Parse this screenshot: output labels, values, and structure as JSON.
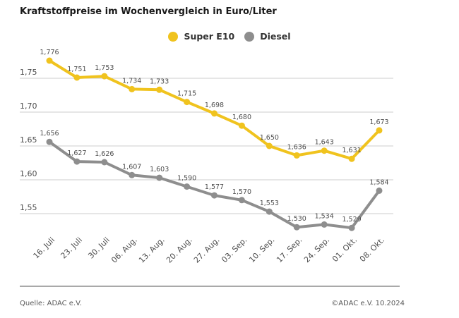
{
  "title": "Kraftstoffpreise im Wochenvergleich in Euro/Liter",
  "legend": {
    "items": [
      {
        "label": "Super E10",
        "color": "#F0C31E"
      },
      {
        "label": "Diesel",
        "color": "#8E8E8E"
      }
    ]
  },
  "footer": {
    "source": "Quelle: ADAC e.V.",
    "copyright": "©ADAC e.V. 10.2024"
  },
  "colors": {
    "grid": "#CCCCCC",
    "axis_text": "#4D4D4D",
    "data_label_text": "#4D4D4D",
    "title_text": "#1A1A1A",
    "divider": "#A9A9A9",
    "background": "#FFFFFF"
  },
  "chart_data": {
    "type": "line",
    "title": "Kraftstoffpreise im Wochenvergleich in Euro/Liter",
    "unit": "Euro/Liter",
    "categories": [
      "16. Juli",
      "23. Juli",
      "30. Juli",
      "06. Aug.",
      "13. Aug.",
      "20. Aug.",
      "27. Aug.",
      "03. Sep.",
      "10. Sep.",
      "17. Sep.",
      "24. Sep.",
      "01. Okt.",
      "08. Okt."
    ],
    "series": [
      {
        "name": "Super E10",
        "color": "#F0C31E",
        "values": [
          1.776,
          1.751,
          1.753,
          1.734,
          1.733,
          1.715,
          1.698,
          1.68,
          1.65,
          1.636,
          1.643,
          1.631,
          1.673
        ]
      },
      {
        "name": "Diesel",
        "color": "#8E8E8E",
        "values": [
          1.656,
          1.627,
          1.626,
          1.607,
          1.603,
          1.59,
          1.577,
          1.57,
          1.553,
          1.53,
          1.534,
          1.529,
          1.584
        ]
      }
    ],
    "yticks": [
      1.55,
      1.6,
      1.65,
      1.7,
      1.75
    ],
    "ylim": [
      1.5,
      1.8
    ],
    "grid": true,
    "legend_position": "top",
    "xlabel_rotation": -45,
    "decimal_separator": ",",
    "data_labels_visible": true
  }
}
